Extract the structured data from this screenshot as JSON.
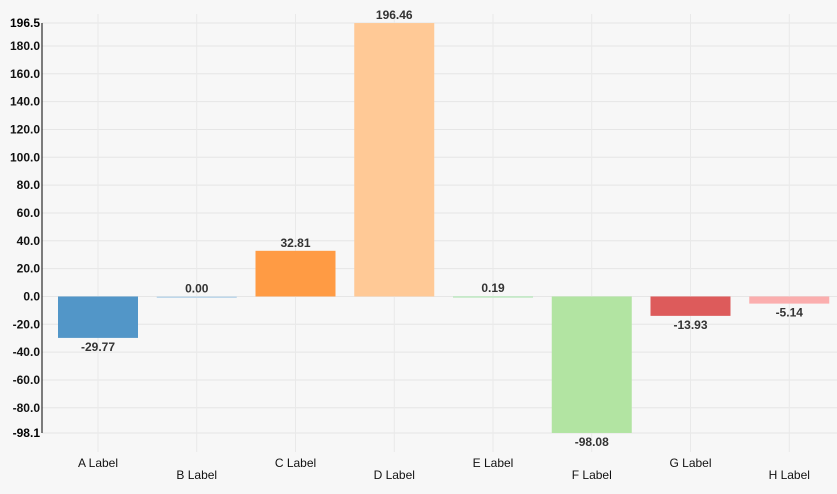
{
  "chart_data": {
    "type": "bar",
    "categories": [
      "A Label",
      "B Label",
      "C Label",
      "D Label",
      "E Label",
      "F Label",
      "G Label",
      "H Label"
    ],
    "values": [
      -29.77,
      0.0,
      32.81,
      196.46,
      0.19,
      -98.08,
      -13.93,
      -5.14
    ],
    "value_labels": [
      "-29.77",
      "0.00",
      "32.81",
      "196.46",
      "0.19",
      "-98.08",
      "-13.93",
      "-5.14"
    ],
    "colors": [
      "#5296c8",
      "#bcd6ea",
      "#ff9b44",
      "#ffc996",
      "#bde8c1",
      "#b2e4a2",
      "#dd5b5b",
      "#fbaeae"
    ],
    "ylim": [
      -98.1,
      196.5
    ],
    "ytick_values": [
      -80,
      -60,
      -40,
      -20,
      0,
      20,
      40,
      60,
      80,
      100,
      120,
      140,
      160,
      180
    ],
    "ytick_labels": [
      "-80.0",
      "-60.0",
      "-40.0",
      "-20.0",
      "0.0",
      "20.0",
      "40.0",
      "60.0",
      "80.0",
      "100.0",
      "120.0",
      "140.0",
      "160.0",
      "180.0"
    ],
    "y_bound_labels": [
      "196.5",
      "-98.1"
    ],
    "title": "",
    "xlabel": "",
    "ylabel": "",
    "grid": true,
    "legend": "none"
  }
}
